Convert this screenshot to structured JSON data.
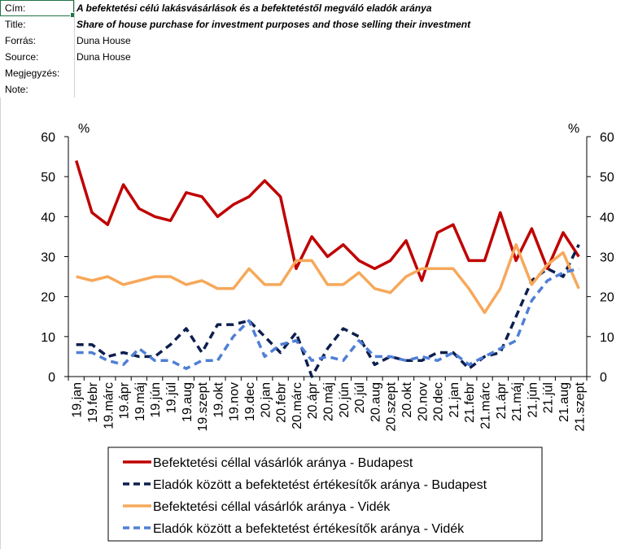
{
  "meta": {
    "rows": [
      {
        "key": "Cím:",
        "value": "A befektetési célú lakásvásárlások és a befektetéstől megváló eladók aránya",
        "style": "bi"
      },
      {
        "key": "Title:",
        "value": "Share of house purchase for investment purposes  and those selling their investment",
        "style": "bi"
      },
      {
        "key": "Forrás:",
        "value": "Duna House",
        "style": ""
      },
      {
        "key": "Source:",
        "value": "Duna House",
        "style": ""
      },
      {
        "key": "Megjegyzés:",
        "value": "",
        "style": ""
      },
      {
        "key": "Note:",
        "value": "",
        "style": ""
      }
    ]
  },
  "chart_data": {
    "type": "line",
    "y_unit_left": "%",
    "y_unit_right": "%",
    "ylim": [
      0,
      60
    ],
    "yticks": [
      0,
      10,
      20,
      30,
      40,
      50,
      60
    ],
    "grid": false,
    "legend_position": "bottom",
    "categories": [
      "19.jan",
      "19.febr",
      "19.márc",
      "19.ápr",
      "19.máj",
      "19.jún",
      "19.júl",
      "19.aug",
      "19.szept",
      "19.okt",
      "19.nov",
      "19.dec",
      "20.jan",
      "20.febr",
      "20.márc",
      "20.ápr",
      "20.máj",
      "20.jún",
      "20.júl",
      "20.aug",
      "20.szept",
      "20.okt",
      "20.nov",
      "20.dec",
      "21.jan",
      "21.febr",
      "21.márc",
      "21.ápr",
      "21.máj",
      "21.jún",
      "21.júl",
      "21.aug",
      "21.szept"
    ],
    "series": [
      {
        "name": "Befektetési céllal vásárlók aránya - Budapest",
        "color": "#c00000",
        "dash": "solid",
        "values": [
          54,
          41,
          38,
          48,
          42,
          40,
          39,
          46,
          45,
          40,
          43,
          45,
          49,
          45,
          27,
          35,
          30,
          33,
          29,
          27,
          29,
          34,
          24,
          36,
          38,
          29,
          29,
          41,
          29,
          37,
          27,
          36,
          30
        ]
      },
      {
        "name": "Eladók között a befektetést értékesítők aránya - Budapest",
        "color": "#0d1f4e",
        "dash": "dashed",
        "values": [
          8,
          8,
          5,
          6,
          5,
          5,
          8,
          12,
          6,
          13,
          13,
          14,
          10,
          6,
          11,
          0,
          7,
          12,
          10,
          3,
          5,
          4,
          4,
          6,
          6,
          2,
          5,
          6,
          15,
          24,
          27,
          25,
          33
        ]
      },
      {
        "name": "Befektetési céllal vásárlók aránya - Vidék",
        "color": "#f6a85a",
        "dash": "solid",
        "values": [
          25,
          24,
          25,
          23,
          24,
          25,
          25,
          23,
          24,
          22,
          22,
          27,
          23,
          23,
          29,
          29,
          23,
          23,
          26,
          22,
          21,
          25,
          27,
          27,
          27,
          22,
          16,
          22,
          33,
          23,
          28,
          31,
          22
        ]
      },
      {
        "name": "Eladók között a befektetést értékesítők aránya - Vidék",
        "color": "#4f7fd6",
        "dash": "dashed",
        "values": [
          6,
          6,
          4,
          3,
          7,
          4,
          4,
          2,
          4,
          4,
          10,
          14,
          5,
          8,
          9,
          4,
          5,
          4,
          9,
          5,
          5,
          4,
          5,
          4,
          6,
          3,
          5,
          7,
          9,
          19,
          24,
          26,
          27
        ]
      }
    ]
  }
}
